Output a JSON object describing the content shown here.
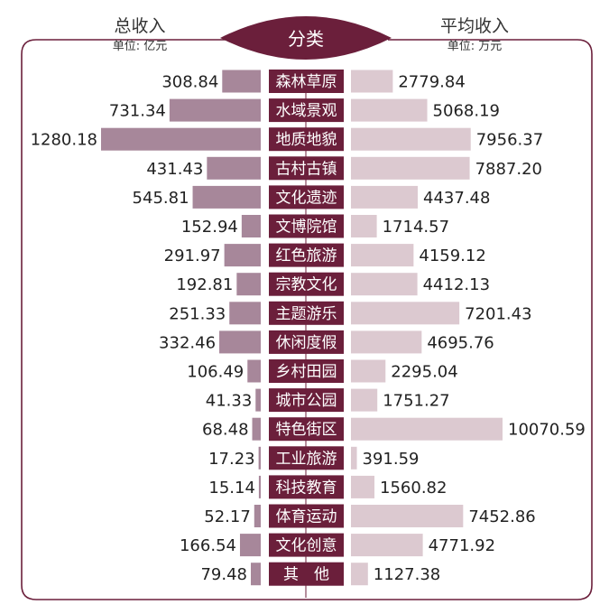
{
  "header": {
    "left_title": "总收入",
    "left_unit": "单位: 亿元",
    "center_title": "分类",
    "right_title": "平均收入",
    "right_unit": "单位: 万元"
  },
  "colors": {
    "frame": "#6b1f3b",
    "left_bar": "#a7879a",
    "right_bar": "#dcc9d0",
    "label_bg": "#6b1f3b",
    "label_text": "#ffffff",
    "value_text": "#222222"
  },
  "chart_data": {
    "type": "bar",
    "layout": "butterfly",
    "categories": [
      "森林草原",
      "水域景观",
      "地质地貌",
      "古村古镇",
      "文化遗迹",
      "文博院馆",
      "红色旅游",
      "宗教文化",
      "主题游乐",
      "休闲度假",
      "乡村田园",
      "城市公园",
      "特色街区",
      "工业旅游",
      "科技教育",
      "体育运动",
      "文化创意",
      "其　他"
    ],
    "series": [
      {
        "name": "总收入",
        "values": [
          308.84,
          731.34,
          1280.18,
          431.43,
          545.81,
          152.94,
          291.97,
          192.81,
          251.33,
          332.46,
          106.49,
          41.33,
          68.48,
          17.23,
          15.14,
          52.17,
          166.54,
          79.48
        ]
      },
      {
        "name": "平均收入",
        "values": [
          2779.84,
          5068.19,
          7956.37,
          7887.2,
          4437.48,
          1714.57,
          4159.12,
          4412.13,
          7201.43,
          4695.76,
          2295.04,
          1751.27,
          10070.59,
          391.59,
          1560.82,
          7452.86,
          4771.92,
          1127.38
        ]
      }
    ],
    "value_labels_left": [
      "308.84",
      "731.34",
      "1280.18",
      "431.43",
      "545.81",
      "152.94",
      "291.97",
      "192.81",
      "251.33",
      "332.46",
      "106.49",
      "41.33",
      "68.48",
      "17.23",
      "15.14",
      "52.17",
      "166.54",
      "79.48"
    ],
    "value_labels_right": [
      "2779.84",
      "5068.19",
      "7956.37",
      "7887.20",
      "4437.48",
      "1714.57",
      "4159.12",
      "4412.13",
      "7201.43",
      "4695.76",
      "2295.04",
      "1751.27",
      "10070.59",
      "391.59",
      "1560.82",
      "7452.86",
      "4771.92",
      "1127.38"
    ]
  }
}
